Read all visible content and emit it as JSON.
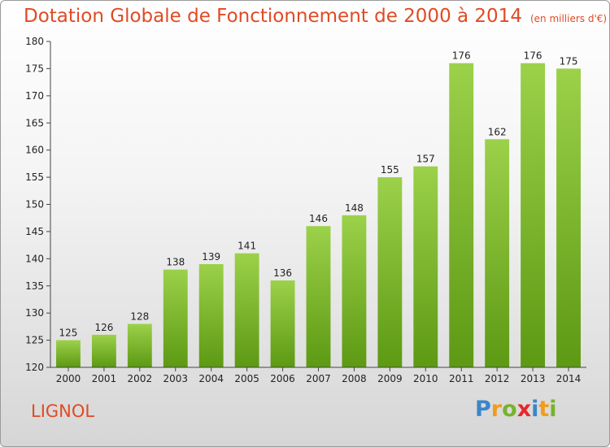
{
  "colors": {
    "title": "#e14a24",
    "city": "#e14a24",
    "bar_top": "#9cd14a",
    "bar_bottom": "#5d9913",
    "axis": "#444444",
    "grid": "#dddddd",
    "text": "#222222"
  },
  "chart_data": {
    "type": "bar",
    "title": "Dotation Globale de Fonctionnement de 2000 à 2014",
    "subtitle": "(en milliers d'€)",
    "xlabel": "",
    "ylabel": "",
    "ylim": [
      120,
      180
    ],
    "yticks": [
      120,
      125,
      130,
      135,
      140,
      145,
      150,
      155,
      160,
      165,
      170,
      175,
      180
    ],
    "grid": false,
    "categories": [
      "2000",
      "2001",
      "2002",
      "2003",
      "2004",
      "2005",
      "2006",
      "2007",
      "2008",
      "2009",
      "2010",
      "2011",
      "2012",
      "2013",
      "2014"
    ],
    "values": [
      125,
      126,
      128,
      138,
      139,
      141,
      136,
      146,
      148,
      155,
      157,
      176,
      162,
      176,
      175
    ]
  },
  "place": "LIGNOL",
  "logo": {
    "text": "Proxiti",
    "letter_colors": [
      "#3a86c8",
      "#f19c1d",
      "#78b22c",
      "#e8262a",
      "#3a86c8",
      "#f19c1d",
      "#78b22c"
    ]
  }
}
